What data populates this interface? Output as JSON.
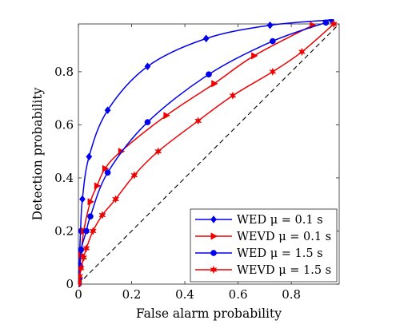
{
  "chart_data": {
    "type": "line",
    "xlabel": "False alarm probability",
    "ylabel": "Detection probability",
    "xlim": [
      0,
      0.98
    ],
    "ylim": [
      0,
      0.98
    ],
    "xticks": [
      {
        "value": 0,
        "label": "0"
      },
      {
        "value": 0.2,
        "label": "0.2"
      },
      {
        "value": 0.4,
        "label": "0.4"
      },
      {
        "value": 0.6,
        "label": "0.6"
      },
      {
        "value": 0.8,
        "label": "0.8"
      }
    ],
    "yticks": [
      {
        "value": 0,
        "label": "0"
      },
      {
        "value": 0.2,
        "label": "0.2"
      },
      {
        "value": 0.4,
        "label": "0.4"
      },
      {
        "value": 0.6,
        "label": "0.6"
      },
      {
        "value": 0.8,
        "label": "0.8"
      }
    ],
    "grid": false,
    "legend_position": "bottom-right",
    "reference_line": {
      "style": "dashed",
      "color": "#000000",
      "points": [
        [
          0,
          0
        ],
        [
          0.98,
          0.98
        ]
      ]
    },
    "series": [
      {
        "name": "WED μ = 0.1 s",
        "color": "#0000ee",
        "marker": "diamond",
        "points": [
          [
            0,
            0
          ],
          [
            0.001,
            0.02
          ],
          [
            0.003,
            0.07
          ],
          [
            0.005,
            0.12
          ],
          [
            0.008,
            0.2
          ],
          [
            0.015,
            0.32
          ],
          [
            0.04,
            0.48
          ],
          [
            0.11,
            0.655
          ],
          [
            0.26,
            0.82
          ],
          [
            0.48,
            0.925
          ],
          [
            0.72,
            0.975
          ],
          [
            0.95,
            0.995
          ]
        ]
      },
      {
        "name": "WEVD μ = 0.1 s",
        "color": "#ee0000",
        "marker": "triangle-right",
        "points": [
          [
            0,
            0
          ],
          [
            0.002,
            0.02
          ],
          [
            0.005,
            0.06
          ],
          [
            0.01,
            0.11
          ],
          [
            0.02,
            0.2
          ],
          [
            0.045,
            0.31
          ],
          [
            0.07,
            0.37
          ],
          [
            0.1,
            0.435
          ],
          [
            0.16,
            0.5
          ],
          [
            0.33,
            0.635
          ],
          [
            0.51,
            0.755
          ],
          [
            0.66,
            0.86
          ],
          [
            0.88,
            0.975
          ]
        ]
      },
      {
        "name": "WED μ = 1.5 s",
        "color": "#0000ee",
        "marker": "circle",
        "points": [
          [
            0,
            0
          ],
          [
            0.003,
            0.02
          ],
          [
            0.006,
            0.07
          ],
          [
            0.01,
            0.13
          ],
          [
            0.03,
            0.2
          ],
          [
            0.045,
            0.255
          ],
          [
            0.11,
            0.42
          ],
          [
            0.26,
            0.61
          ],
          [
            0.49,
            0.79
          ],
          [
            0.73,
            0.915
          ],
          [
            0.93,
            0.985
          ]
        ]
      },
      {
        "name": "WEVD μ = 1.5 s",
        "color": "#ee0000",
        "marker": "star",
        "points": [
          [
            0,
            0
          ],
          [
            0.002,
            0.01
          ],
          [
            0.005,
            0.03
          ],
          [
            0.01,
            0.06
          ],
          [
            0.02,
            0.1
          ],
          [
            0.03,
            0.135
          ],
          [
            0.055,
            0.2
          ],
          [
            0.09,
            0.26
          ],
          [
            0.14,
            0.32
          ],
          [
            0.21,
            0.41
          ],
          [
            0.3,
            0.5
          ],
          [
            0.45,
            0.615
          ],
          [
            0.58,
            0.71
          ],
          [
            0.73,
            0.8
          ],
          [
            0.84,
            0.875
          ],
          [
            0.96,
            0.98
          ]
        ]
      }
    ]
  }
}
